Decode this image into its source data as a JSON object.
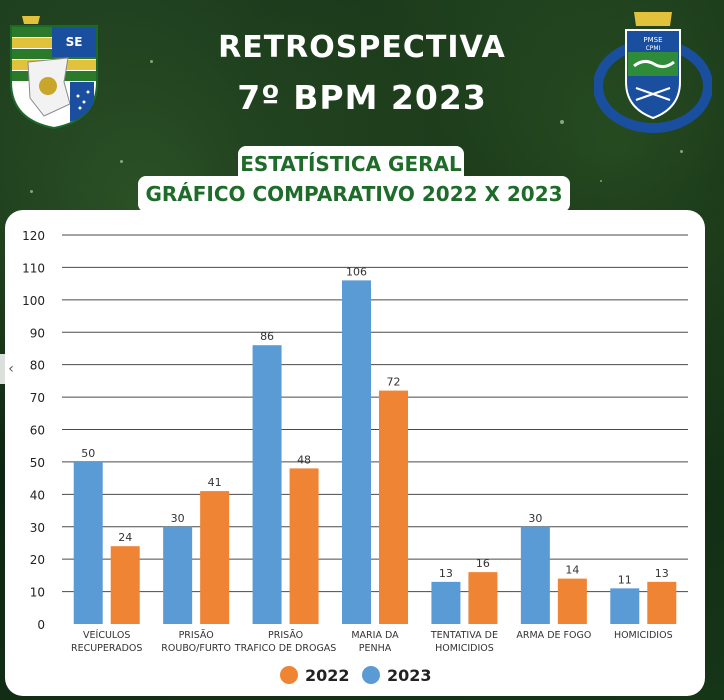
{
  "header": {
    "title_line1": "RETROSPECTIVA",
    "title_line2": "7º BPM 2023",
    "subtitle_line1": "ESTATÍSTICA GERAL",
    "subtitle_line2": "GRÁFICO COMPARATIVO 2022 X 2023"
  },
  "logos": {
    "left": {
      "icon": "sergipe-state-flag-shield-icon",
      "text": "SE"
    },
    "right": {
      "icon": "7-bpm-battalion-crest-icon",
      "text_top": "PMSE",
      "text_sub": "CPMI"
    }
  },
  "colors": {
    "series_2022": "#ee8434",
    "series_2023": "#5b9bd5",
    "background": "#13301a",
    "subtitle_text": "#1e6b2a"
  },
  "chart_data": {
    "type": "bar",
    "title": "",
    "xlabel": "",
    "ylabel": "",
    "ylim": [
      0,
      120
    ],
    "yticks": [
      0,
      10,
      20,
      30,
      40,
      50,
      60,
      70,
      80,
      90,
      100,
      110,
      120
    ],
    "grid": true,
    "legend_position": "bottom",
    "categories": [
      [
        "VEÍCULOS",
        "RECUPERADOS"
      ],
      [
        "PRISÃO",
        "ROUBO/FURTO"
      ],
      [
        "PRISÃO",
        "TRAFICO DE DROGAS"
      ],
      [
        "MARIA DA",
        "PENHA"
      ],
      [
        "TENTATIVA DE",
        "HOMICIDIOS"
      ],
      [
        "ARMA DE FOGO"
      ],
      [
        "HOMICIDIOS"
      ]
    ],
    "series": [
      {
        "name": "2023",
        "color": "#5b9bd5",
        "values": [
          50,
          30,
          86,
          106,
          13,
          30,
          11
        ],
        "labels": [
          "50",
          "30",
          "86",
          "106",
          "13",
          "30",
          "11"
        ]
      },
      {
        "name": "2022",
        "color": "#ee8434",
        "values": [
          24,
          41,
          48,
          72,
          16,
          14,
          13
        ],
        "labels": [
          "24",
          "41",
          "48",
          "72",
          "16",
          "14",
          "13"
        ]
      }
    ],
    "legend": [
      {
        "name": "2022",
        "color": "#ee8434"
      },
      {
        "name": "2023",
        "color": "#5b9bd5"
      }
    ]
  }
}
